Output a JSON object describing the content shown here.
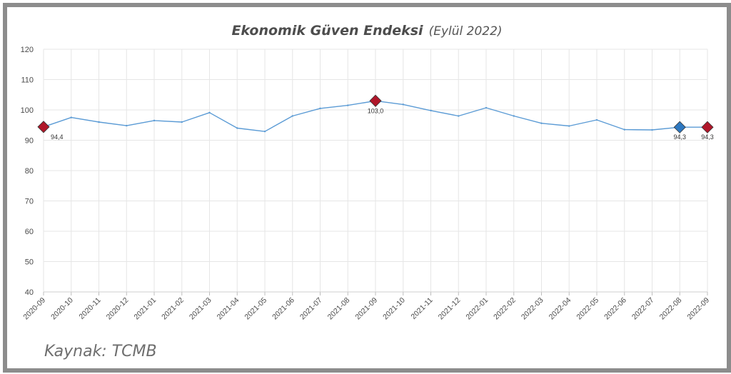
{
  "title": "Ekonomik Güven Endeksi",
  "subtitle": "(Eylül 2022)",
  "source": "Kaynak: TCMB",
  "colors": {
    "line": "#5b9bd5",
    "highlight_red": "#b0172a",
    "highlight_blue": "#2e78c0",
    "grid": "#e6e6e6",
    "axis_text": "#4a4a4a",
    "frame": "#8c8c8c"
  },
  "chart_data": {
    "type": "line",
    "x": [
      "2020-09",
      "2020-10",
      "2020-11",
      "2020-12",
      "2021-01",
      "2021-02",
      "2021-03",
      "2021-04",
      "2021-05",
      "2021-06",
      "2021-07",
      "2021-08",
      "2021-09",
      "2021-10",
      "2021-11",
      "2021-12",
      "2022-01",
      "2022-02",
      "2022-03",
      "2022-04",
      "2022-05",
      "2022-06",
      "2022-07",
      "2022-08",
      "2022-09"
    ],
    "values": [
      94.4,
      97.5,
      96.0,
      94.8,
      96.5,
      96.0,
      99.1,
      94.0,
      92.9,
      98.0,
      100.5,
      101.5,
      103.0,
      101.8,
      99.8,
      98.0,
      100.7,
      98.0,
      95.6,
      94.7,
      96.7,
      93.5,
      93.4,
      94.3,
      94.3
    ],
    "ylim": [
      40,
      120
    ],
    "yticks": [
      40,
      50,
      60,
      70,
      80,
      90,
      100,
      110,
      120
    ],
    "grid": true,
    "highlights": [
      {
        "index": 0,
        "label": "94,4",
        "color": "red"
      },
      {
        "index": 12,
        "label": "103,0",
        "color": "red"
      },
      {
        "index": 23,
        "label": "94,3",
        "color": "blue"
      },
      {
        "index": 24,
        "label": "94,3",
        "color": "red"
      }
    ]
  }
}
